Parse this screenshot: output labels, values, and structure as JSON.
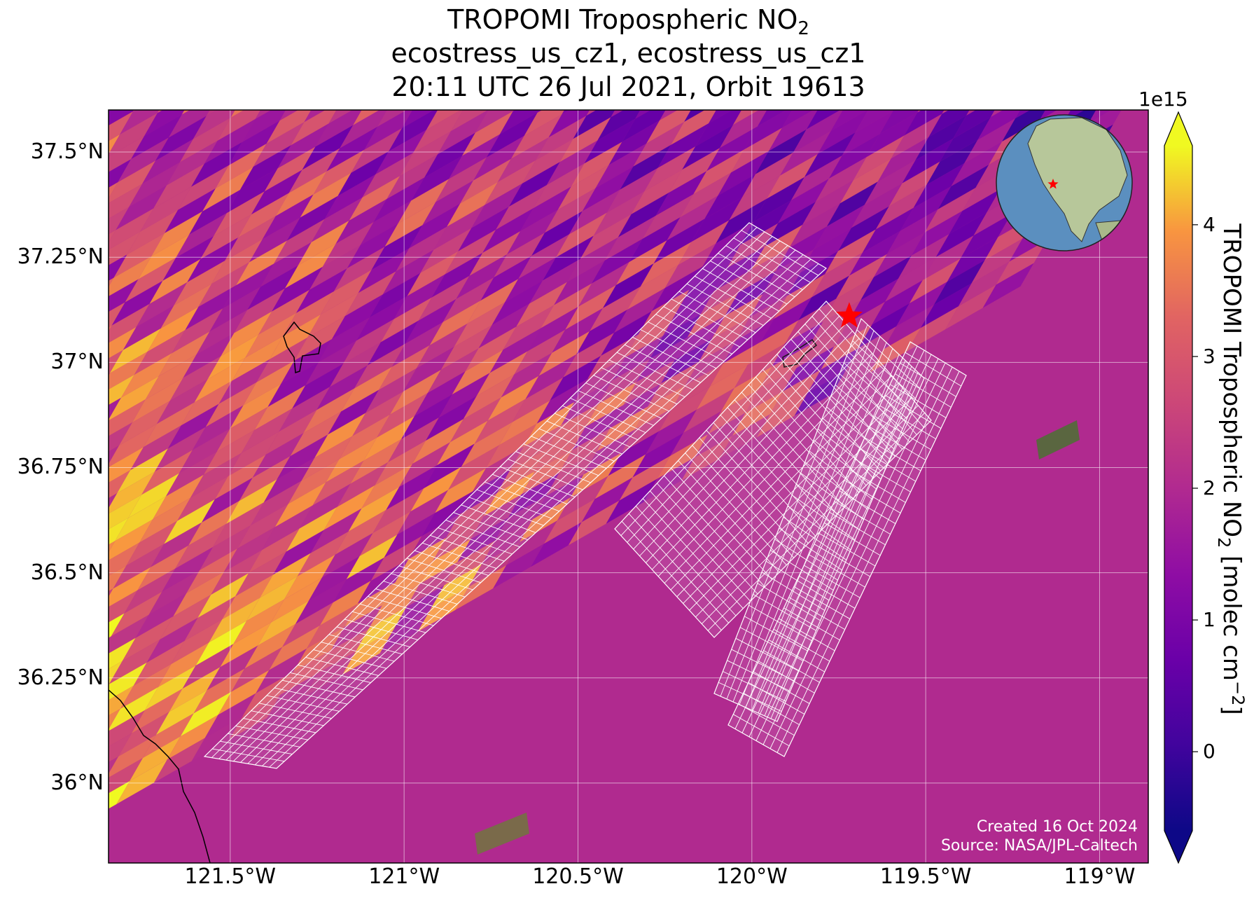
{
  "title": {
    "line1_main": "TROPOMI Tropospheric NO",
    "line1_sub": "2",
    "line2": "ecostress_us_cz1, ecostress_us_cz1",
    "line3": "20:11 UTC 26 Jul 2021, Orbit 19613"
  },
  "map": {
    "lon_range": [
      -121.85,
      -118.86
    ],
    "lat_range": [
      35.81,
      37.6
    ],
    "lat_ticks": [
      {
        "value": 37.5,
        "label": "37.5°N"
      },
      {
        "value": 37.25,
        "label": "37.25°N"
      },
      {
        "value": 37.0,
        "label": "37°N"
      },
      {
        "value": 36.75,
        "label": "36.75°N"
      },
      {
        "value": 36.5,
        "label": "36.5°N"
      },
      {
        "value": 36.25,
        "label": "36.25°N"
      },
      {
        "value": 36.0,
        "label": "36°N"
      }
    ],
    "lon_ticks": [
      {
        "value": -121.5,
        "label": "121.5°W"
      },
      {
        "value": -121.0,
        "label": "121°W"
      },
      {
        "value": -120.5,
        "label": "120.5°W"
      },
      {
        "value": -120.0,
        "label": "120°W"
      },
      {
        "value": -119.5,
        "label": "119.5°W"
      },
      {
        "value": -119.0,
        "label": "119°W"
      }
    ],
    "grid": true,
    "site_marker": {
      "lon": -119.72,
      "lat": 37.11,
      "color": "#ff0000",
      "shape": "star"
    },
    "overlay_color": "#ffffff"
  },
  "colorbar": {
    "exponent_label": "1e15",
    "label_main": "TROPOMI Tropospheric NO",
    "label_sub": "2",
    "label_units_open": " [molec cm",
    "label_sup": "−2",
    "label_close": "]",
    "colormap": "plasma",
    "vmin": -0.6,
    "vmax": 4.6,
    "extend": "both",
    "ticks": [
      {
        "value": 0,
        "label": "0"
      },
      {
        "value": 1,
        "label": "1"
      },
      {
        "value": 2,
        "label": "2"
      },
      {
        "value": 3,
        "label": "3"
      },
      {
        "value": 4,
        "label": "4"
      }
    ]
  },
  "inset_globe": {
    "marker_color": "#ff0000",
    "ocean_color": "#5b8fbf",
    "land_color": "#b7c79a"
  },
  "credit": {
    "created": "Created 16 Oct 2024",
    "source": "Source: NASA/JPL-Caltech"
  }
}
